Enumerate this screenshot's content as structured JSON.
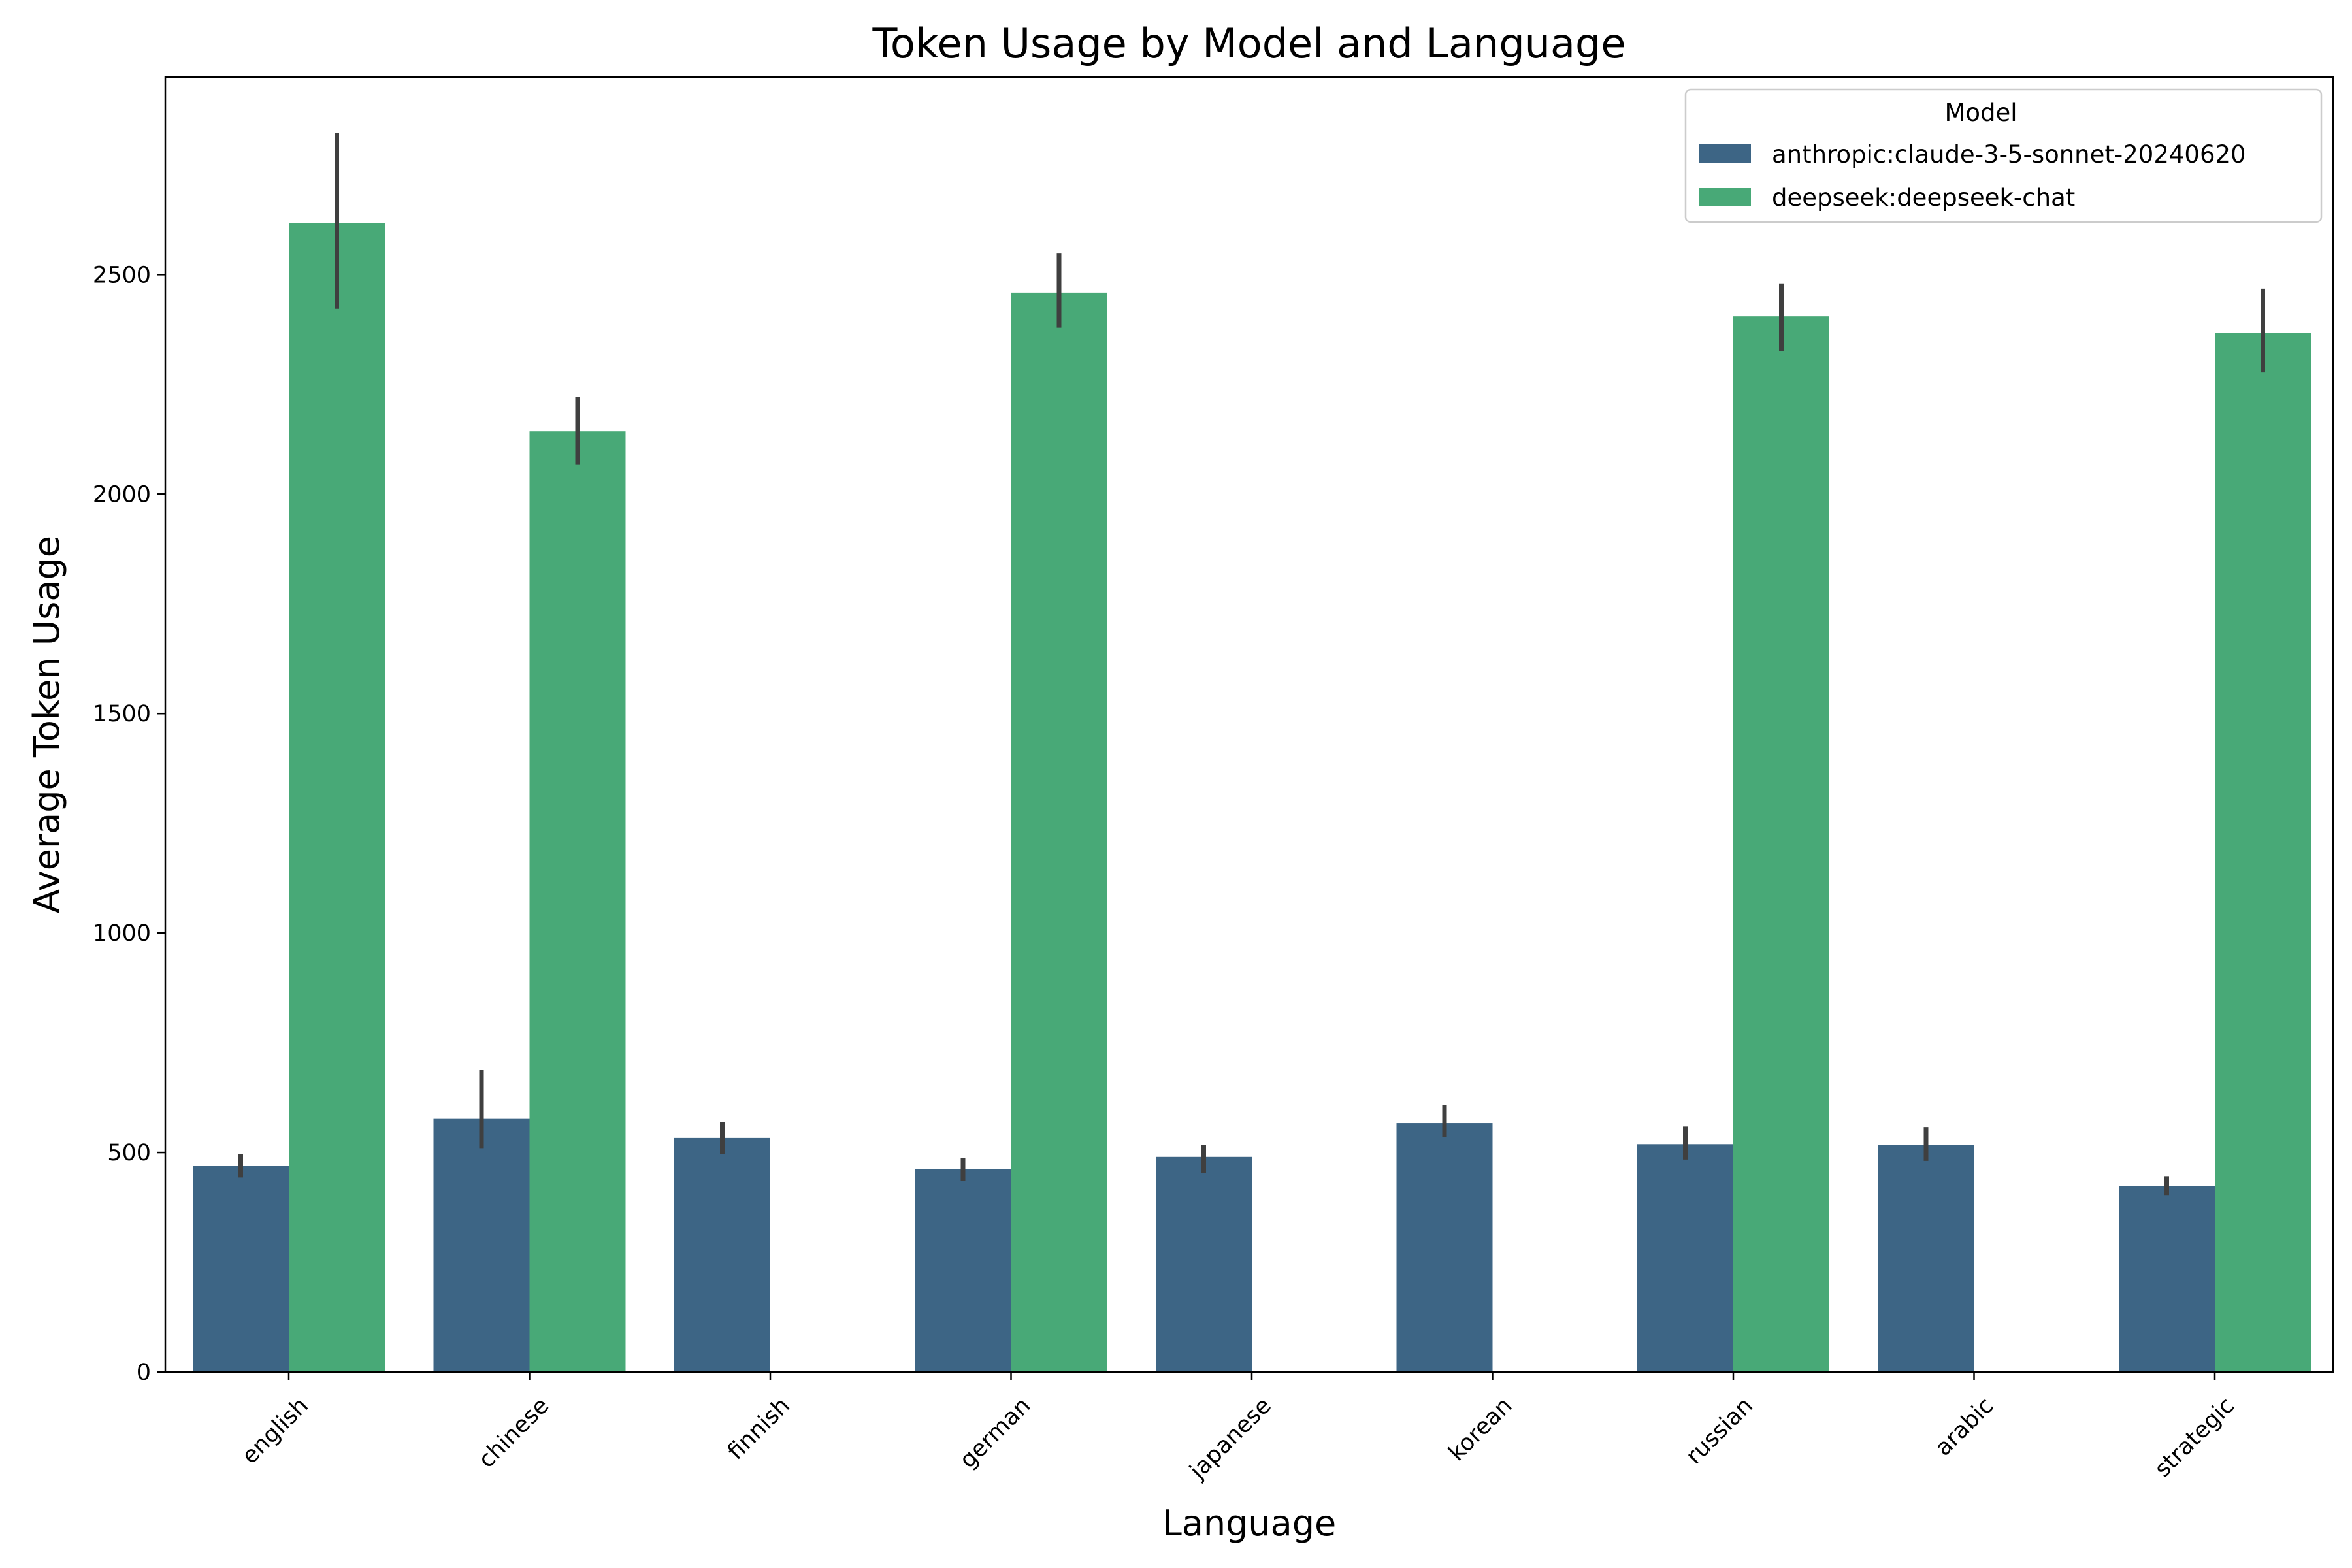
{
  "chart_data": {
    "type": "bar",
    "title": "Token Usage by Model and Language",
    "xlabel": "Language",
    "ylabel": "Average Token Usage",
    "categories": [
      "english",
      "chinese",
      "finnish",
      "german",
      "japanese",
      "korean",
      "russian",
      "arabic",
      "strategic"
    ],
    "ylim": [
      0,
      2950
    ],
    "yticks": [
      0,
      500,
      1000,
      1500,
      2000,
      2500
    ],
    "grid": false,
    "legend": {
      "title": "Model",
      "placement": "top-right"
    },
    "series": [
      {
        "name": "anthropic:claude-3-5-sonnet-20240620",
        "color": "#3d6585",
        "values": [
          470,
          578,
          533,
          462,
          490,
          567,
          519,
          517,
          423
        ],
        "error_low": [
          443,
          510,
          497,
          436,
          454,
          535,
          484,
          481,
          403
        ],
        "error_high": [
          497,
          688,
          569,
          487,
          518,
          608,
          559,
          558,
          446
        ]
      },
      {
        "name": "deepseek:deepseek-chat",
        "color": "#48a977",
        "values": [
          2618,
          2143,
          null,
          2459,
          null,
          null,
          2405,
          null,
          2368
        ],
        "error_low": [
          2422,
          2068,
          null,
          2379,
          null,
          null,
          2326,
          null,
          2277
        ],
        "error_high": [
          2822,
          2222,
          null,
          2548,
          null,
          null,
          2480,
          null,
          2468
        ]
      }
    ],
    "errorbar_color": "#3f3f3f"
  }
}
